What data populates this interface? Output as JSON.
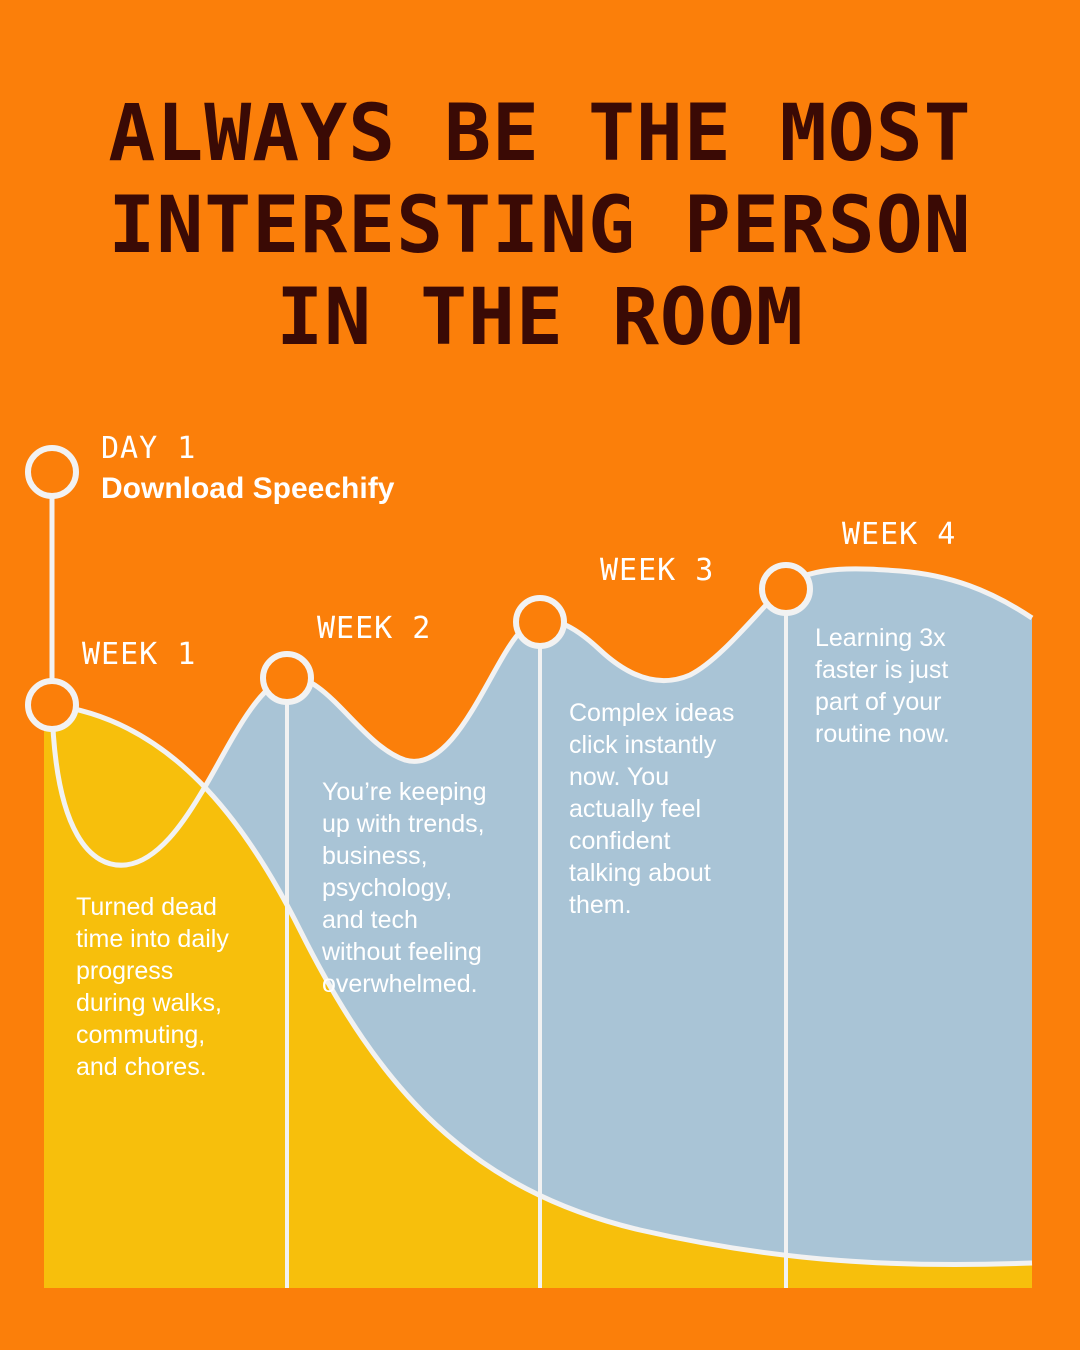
{
  "headline": {
    "lines": [
      "ALWAYS BE THE MOST",
      "INTERESTING PERSON",
      "IN THE ROOM"
    ]
  },
  "timeline": {
    "day1": {
      "label": "DAY 1",
      "subtitle": "Download Speechify"
    },
    "week1": {
      "label": "WEEK 1",
      "text_lines": [
        "Turned dead",
        "time into daily",
        "progress",
        "during walks,",
        "commuting,",
        "and chores."
      ]
    },
    "week2": {
      "label": "WEEK 2",
      "text_lines": [
        "You’re keeping",
        "up with trends,",
        "business,",
        "psychology,",
        "and tech",
        "without feeling",
        "overwhelmed."
      ]
    },
    "week3": {
      "label": "WEEK 3",
      "text_lines": [
        "Complex ideas",
        "click instantly",
        "now. You",
        "actually feel",
        "confident",
        "talking about",
        "them."
      ]
    },
    "week4": {
      "label": "WEEK 4",
      "text_lines": [
        "Learning 3x",
        "faster is just",
        "part of your",
        "routine now."
      ]
    }
  },
  "colors": {
    "background": "#FB7F0A",
    "headline": "#3A0A05",
    "blue_area": "#A9C4D6",
    "yellow_area": "#F7BF0C",
    "lines": "#F2F2F2"
  }
}
